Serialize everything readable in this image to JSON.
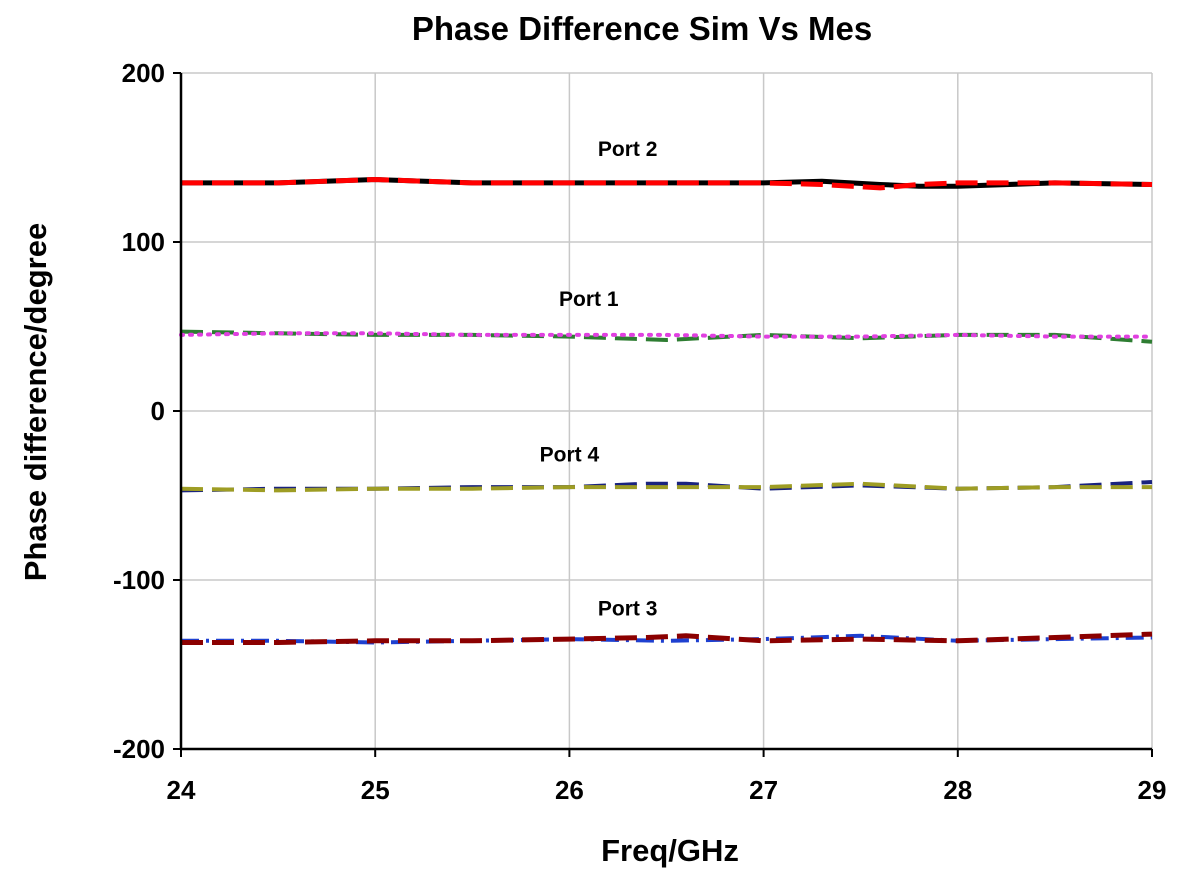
{
  "chart_data": {
    "type": "line",
    "title": "Phase Difference Sim Vs Mes",
    "xlabel": "Freq/GHz",
    "ylabel": "Phase difference/degree",
    "xlim": [
      24,
      29
    ],
    "ylim": [
      -200,
      200
    ],
    "x_ticks": [
      "24",
      "25",
      "26",
      "27",
      "28",
      "29"
    ],
    "y_ticks": [
      "200",
      "100",
      "0",
      "-100",
      "-200"
    ],
    "grid": true,
    "legend": "none",
    "annotations": [
      {
        "text": "Port 2",
        "x": 26.3,
        "y": 151
      },
      {
        "text": "Port 1",
        "x": 26.1,
        "y": 62
      },
      {
        "text": "Port 4",
        "x": 26.0,
        "y": -30
      },
      {
        "text": "Port 3",
        "x": 26.3,
        "y": -121
      }
    ],
    "series": [
      {
        "color": "#000000",
        "dash": "solid",
        "width": 5,
        "x": [
          24,
          24.5,
          25,
          25.5,
          26,
          26.5,
          27,
          27.3,
          27.6,
          27.8,
          28,
          28.5,
          29
        ],
        "y": [
          135,
          135,
          137,
          135,
          135,
          135,
          135,
          136,
          134,
          133,
          133,
          135,
          134
        ]
      },
      {
        "color": "#ff0000",
        "dash": "dashed",
        "width": 5,
        "x": [
          24,
          24.5,
          25,
          25.5,
          26,
          26.5,
          27,
          27.3,
          27.6,
          27.8,
          28,
          28.5,
          29
        ],
        "y": [
          135,
          135,
          137,
          135,
          135,
          135,
          135,
          134,
          132,
          134,
          135,
          135,
          134
        ]
      },
      {
        "color": "#2e7d32",
        "dash": "dashed",
        "width": 4,
        "x": [
          24,
          24.5,
          25,
          25.5,
          26,
          26.5,
          27,
          27.5,
          28,
          28.5,
          29
        ],
        "y": [
          47,
          46,
          45,
          45,
          44,
          42,
          45,
          43,
          45,
          45,
          41
        ]
      },
      {
        "color": "#e040e0",
        "dash": "dotted",
        "width": 4,
        "x": [
          24,
          24.5,
          25,
          25.5,
          26,
          26.5,
          27,
          27.5,
          28,
          28.5,
          29
        ],
        "y": [
          45,
          46,
          46,
          45,
          45,
          45,
          44,
          44,
          45,
          44,
          44
        ]
      },
      {
        "color": "#1a237e",
        "dash": "dashed",
        "width": 4,
        "x": [
          24,
          24.5,
          25,
          25.5,
          26,
          26.4,
          26.6,
          27,
          27.5,
          28,
          28.5,
          29
        ],
        "y": [
          -47,
          -46,
          -46,
          -45,
          -45,
          -43,
          -43,
          -46,
          -44,
          -46,
          -45,
          -42
        ]
      },
      {
        "color": "#9e9d24",
        "dash": "dashed",
        "width": 4,
        "x": [
          24,
          24.5,
          25,
          25.5,
          26,
          26.5,
          27,
          27.5,
          28,
          28.5,
          29
        ],
        "y": [
          -46,
          -47,
          -46,
          -46,
          -45,
          -45,
          -45,
          -43,
          -46,
          -45,
          -45
        ]
      },
      {
        "color": "#1e40d0",
        "dash": "dashdot",
        "width": 4,
        "x": [
          24,
          24.5,
          25,
          25.5,
          26,
          26.5,
          27,
          27.5,
          28,
          28.5,
          29
        ],
        "y": [
          -136,
          -136,
          -137,
          -136,
          -135,
          -136,
          -135,
          -133,
          -136,
          -135,
          -134
        ]
      },
      {
        "color": "#8b0000",
        "dash": "dashed",
        "width": 5,
        "x": [
          24,
          24.5,
          25,
          25.5,
          26,
          26.4,
          26.6,
          27,
          27.5,
          28,
          28.5,
          29
        ],
        "y": [
          -137,
          -137,
          -136,
          -136,
          -135,
          -134,
          -133,
          -136,
          -135,
          -136,
          -134,
          -132
        ]
      }
    ]
  }
}
